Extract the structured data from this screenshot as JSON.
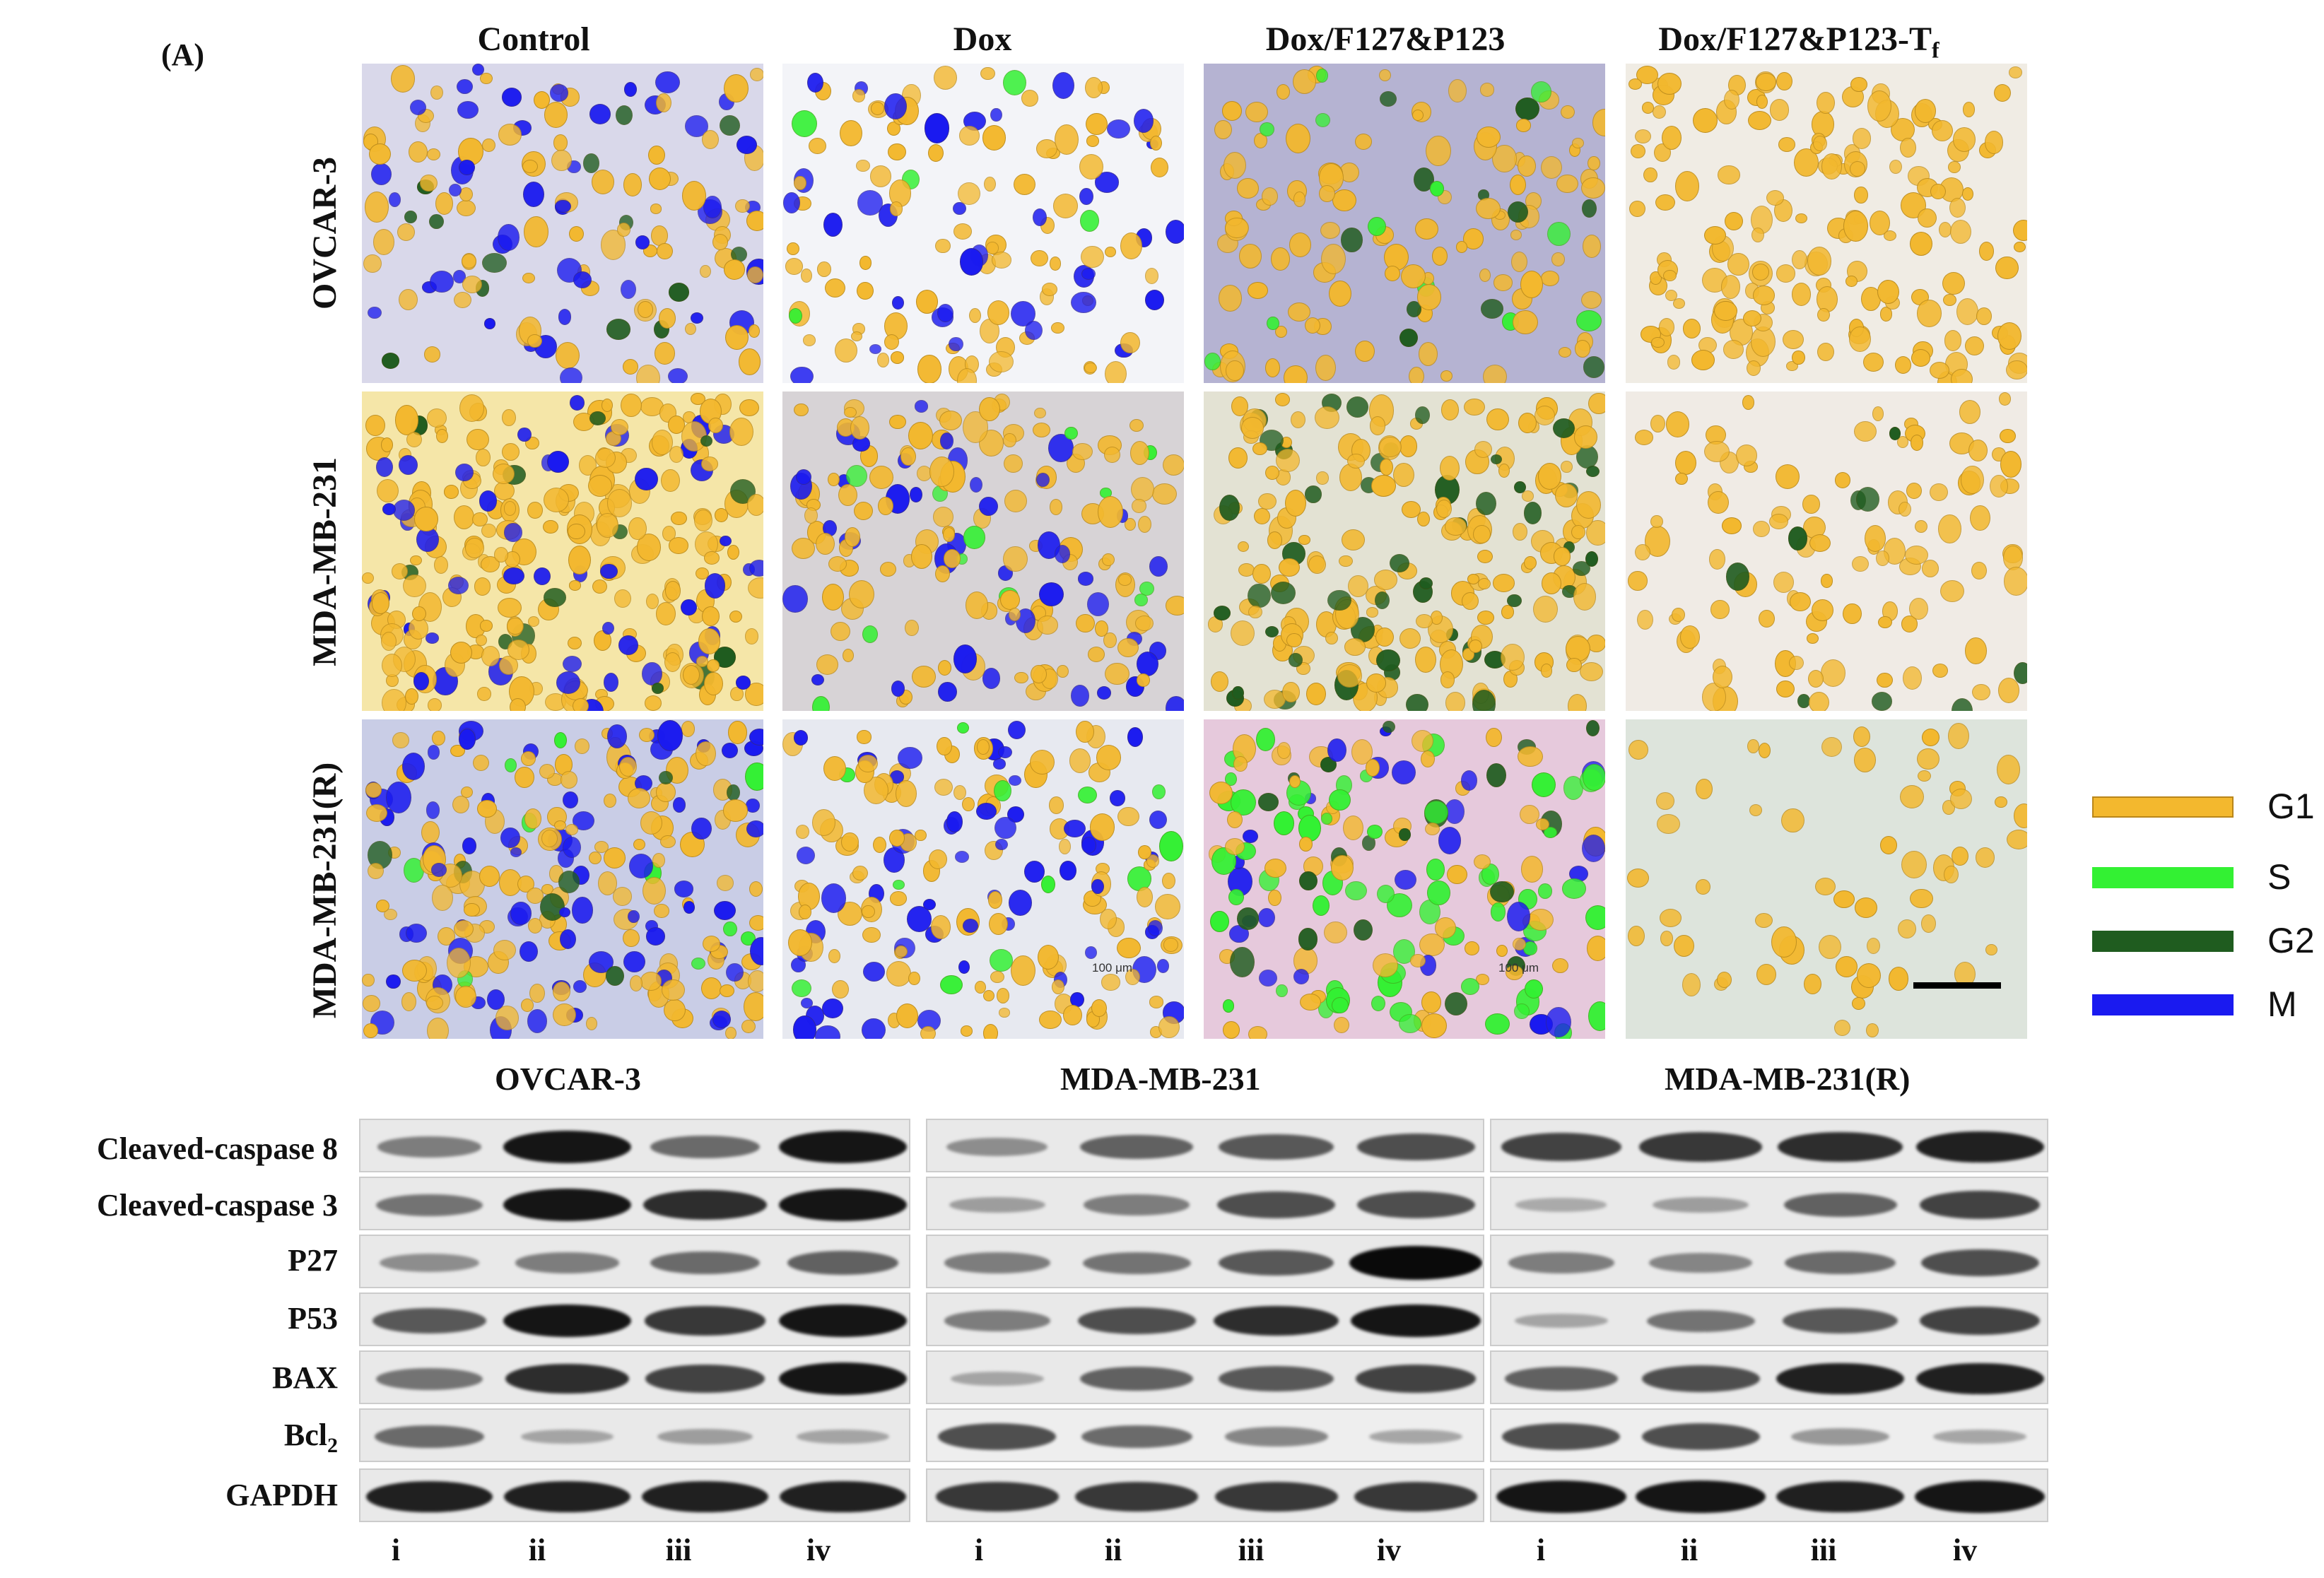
{
  "panel_label": "(A)",
  "columns": [
    "Control",
    "Dox",
    "Dox/F127&P123",
    "Dox/F127&P123-T"
  ],
  "columns_subscript_last": "f",
  "rows": [
    "OVCAR-3",
    "MDA-MB-231",
    "MDA-MB-231(R)"
  ],
  "scale_text": "100 μm",
  "legend": [
    {
      "label": "G1",
      "color": "#f3b82e"
    },
    {
      "label": "S",
      "color": "#33f133"
    },
    {
      "label": "G2",
      "color": "#1f5c1f"
    },
    {
      "label": "M",
      "color": "#1a1af0"
    }
  ],
  "blot_groups": [
    "OVCAR-3",
    "MDA-MB-231",
    "MDA-MB-231(R)"
  ],
  "blot_rows": [
    "Cleaved-caspase 8",
    "Cleaved-caspase 3",
    "P27",
    "P53",
    "BAX",
    "Bcl",
    "GAPDH"
  ],
  "bcl_subscript": "2",
  "lanes": [
    "i",
    "ii",
    "iii",
    "iv"
  ],
  "band_intensity": [
    [
      [
        0.45,
        0.95,
        0.55,
        0.95
      ],
      [
        0.35,
        0.6,
        0.65,
        0.7
      ],
      [
        0.75,
        0.8,
        0.85,
        0.9
      ]
    ],
    [
      [
        0.5,
        0.95,
        0.85,
        0.95
      ],
      [
        0.25,
        0.45,
        0.7,
        0.7
      ],
      [
        0.15,
        0.25,
        0.6,
        0.75
      ]
    ],
    [
      [
        0.35,
        0.45,
        0.55,
        0.6
      ],
      [
        0.45,
        0.5,
        0.65,
        1.0
      ],
      [
        0.45,
        0.4,
        0.55,
        0.7
      ]
    ],
    [
      [
        0.65,
        0.95,
        0.8,
        0.95
      ],
      [
        0.45,
        0.7,
        0.85,
        0.95
      ],
      [
        0.2,
        0.5,
        0.65,
        0.75
      ]
    ],
    [
      [
        0.5,
        0.85,
        0.75,
        0.95
      ],
      [
        0.2,
        0.6,
        0.65,
        0.75
      ],
      [
        0.6,
        0.7,
        0.9,
        0.9
      ]
    ],
    [
      [
        0.55,
        0.2,
        0.25,
        0.2
      ],
      [
        0.7,
        0.55,
        0.4,
        0.2
      ],
      [
        0.7,
        0.7,
        0.3,
        0.2
      ]
    ],
    [
      [
        0.9,
        0.9,
        0.9,
        0.9
      ],
      [
        0.8,
        0.8,
        0.8,
        0.8
      ],
      [
        0.95,
        0.95,
        0.9,
        0.95
      ]
    ]
  ],
  "micro_mix": [
    [
      [
        0.55,
        0.0,
        0.1,
        0.35
      ],
      [
        0.7,
        0.05,
        0.0,
        0.25
      ],
      [
        0.8,
        0.05,
        0.15,
        0.0
      ],
      [
        1.0,
        0.0,
        0.02,
        0.0
      ]
    ],
    [
      [
        0.75,
        0.0,
        0.05,
        0.2
      ],
      [
        0.65,
        0.1,
        0.0,
        0.25
      ],
      [
        0.8,
        0.0,
        0.2,
        0.0
      ],
      [
        0.95,
        0.0,
        0.05,
        0.0
      ]
    ],
    [
      [
        0.55,
        0.05,
        0.05,
        0.35
      ],
      [
        0.55,
        0.1,
        0.0,
        0.35
      ],
      [
        0.35,
        0.4,
        0.05,
        0.2
      ],
      [
        1.0,
        0.0,
        0.0,
        0.0
      ]
    ]
  ],
  "micro_bg": [
    [
      "#d9d8ea",
      "#f3f4f8",
      "#b5b3d2",
      "#f0ece4"
    ],
    [
      "#f5e6a8",
      "#d7d3d6",
      "#e3e2d3",
      "#f0ebe5"
    ],
    [
      "#c9cde6",
      "#e7e9f0",
      "#e6c9dc",
      "#dde4dc"
    ]
  ],
  "micro_density": [
    [
      140,
      130,
      130,
      170
    ],
    [
      260,
      170,
      220,
      110
    ],
    [
      230,
      180,
      170,
      60
    ]
  ]
}
